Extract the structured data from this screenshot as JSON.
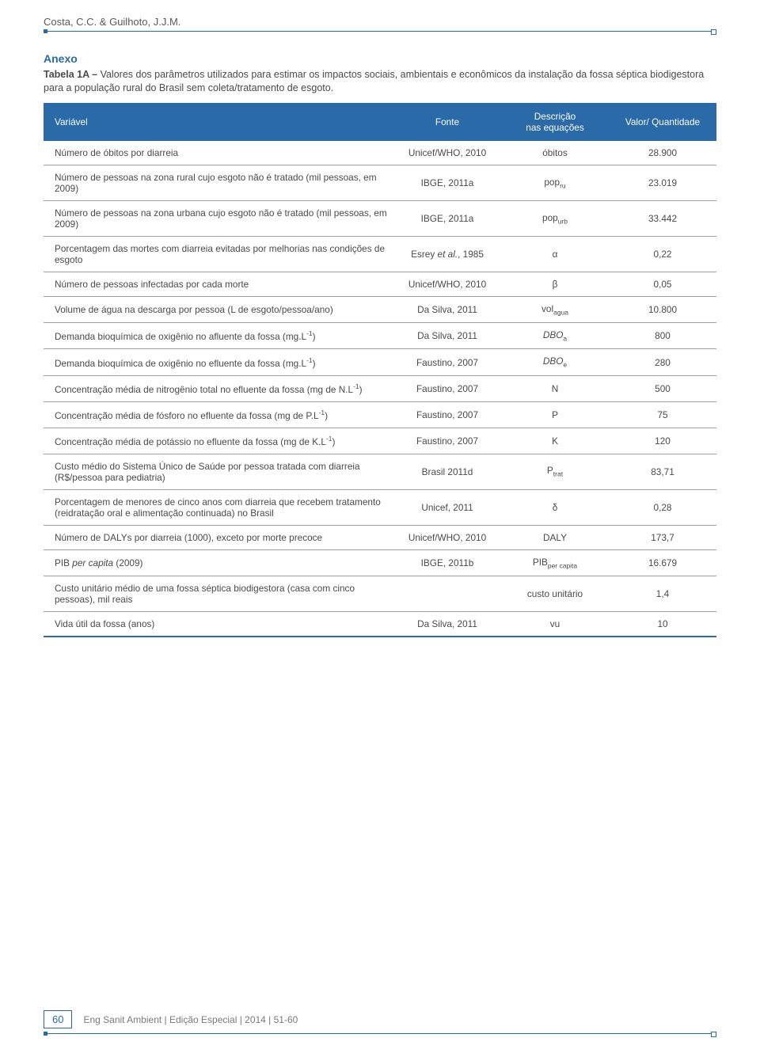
{
  "header": {
    "authors": "Costa, C.C. & Guilhoto, J.J.M."
  },
  "anexo": {
    "title": "Anexo",
    "caption_bold": "Tabela 1A – ",
    "caption_rest": "Valores dos parâmetros utilizados para estimar os impactos sociais, ambientais e econômicos da instalação da fossa séptica biodigestora para a população rural do Brasil sem coleta/tratamento de esgoto."
  },
  "table": {
    "headers": {
      "variavel": "Variável",
      "fonte": "Fonte",
      "descricao_l1": "Descrição",
      "descricao_l2": "nas equações",
      "valor": "Valor/ Quantidade"
    },
    "rows": [
      {
        "v": "Número de óbitos por diarreia",
        "f": "Unicef/WHO, 2010",
        "d": "óbitos",
        "q": "28.900"
      },
      {
        "v": "Número de pessoas na zona rural cujo esgoto não é tratado (mil pessoas, em 2009)",
        "f": "IBGE, 2011a",
        "d_html": "pop<span class='sub'>ru</span>",
        "q": "23.019"
      },
      {
        "v": "Número de pessoas na zona urbana cujo esgoto não é tratado (mil pessoas, em 2009)",
        "f": "IBGE, 2011a",
        "d_html": "pop<span class='sub'>urb</span>",
        "q": "33.442"
      },
      {
        "v": "Porcentagem das mortes com diarreia evitadas por melhorias nas condições de esgoto",
        "f_html": "Esrey <span class='ital'>et al.</span>, 1985",
        "d": "α",
        "q": "0,22"
      },
      {
        "v": "Número de pessoas infectadas por cada morte",
        "f": "Unicef/WHO, 2010",
        "d": "β",
        "q": "0,05"
      },
      {
        "v": "Volume de água na descarga por pessoa (L de esgoto/pessoa/ano)",
        "f": "Da Silva, 2011",
        "d_html": "vol<span class='sub'>agua</span>",
        "q": "10.800"
      },
      {
        "v_html": "Demanda bioquímica de oxigênio no afluente da fossa (mg.L<span class='sup'>-1</span>)",
        "f": "Da Silva, 2011",
        "d_html": "<span class='ital'>DBO</span><span class='sub'>a</span>",
        "q": "800"
      },
      {
        "v_html": "Demanda bioquímica de oxigênio no efluente da fossa (mg.L<span class='sup'>-1</span>)",
        "f": "Faustino, 2007",
        "d_html": "<span class='ital'>DBO</span><span class='sub'>e</span>",
        "q": "280"
      },
      {
        "v_html": "Concentração média de nitrogênio total no efluente da fossa (mg de N.L<span class='sup'>-1</span>)",
        "f": "Faustino, 2007",
        "d": "N",
        "q": "500"
      },
      {
        "v_html": "Concentração média de fósforo no efluente da fossa (mg de P.L<span class='sup'>-1</span>)",
        "f": "Faustino, 2007",
        "d": "P",
        "q": "75"
      },
      {
        "v_html": "Concentração média de potássio no efluente da fossa (mg de K.L<span class='sup'>-1</span>)",
        "f": "Faustino, 2007",
        "d": "K",
        "q": "120"
      },
      {
        "v": "Custo médio do Sistema Único de Saúde por pessoa tratada com diarreia (R$/pessoa para pediatria)",
        "f": "Brasil  2011d",
        "d_html": "P<span class='sub'>trat</span>",
        "q": "83,71"
      },
      {
        "v": "Porcentagem de menores de cinco anos com diarreia que recebem tratamento (reidratação oral e alimentação continuada) no Brasil",
        "f": "Unicef, 2011",
        "d": "δ",
        "q": "0,28"
      },
      {
        "v": "Número de DALYs por diarreia (1000), exceto por morte precoce",
        "f": "Unicef/WHO, 2010",
        "d": "DALY",
        "q": "173,7"
      },
      {
        "v_html": "PIB <span class='ital'>per capita</span> (2009)",
        "f": "IBGE, 2011b",
        "d_html": "PIB<span class='sub'>per capita</span>",
        "q": "16.679"
      },
      {
        "v": "Custo unitário médio de uma fossa séptica biodigestora (casa com cinco pessoas), mil reais",
        "f": "",
        "d": "custo unitário",
        "q": "1,4"
      },
      {
        "v": "Vida útil da fossa (anos)",
        "f": "Da Silva, 2011",
        "d": "vu",
        "q": "10"
      }
    ],
    "colors": {
      "header_bg": "#2a6aa8",
      "header_text": "#ffffff",
      "row_border": "#9ca2a6",
      "text": "#4a4a4a",
      "rule": "#2a6aa8"
    },
    "col_widths_pct": [
      52,
      16,
      16,
      16
    ],
    "font_size_pt": 9
  },
  "footer": {
    "page": "60",
    "text": "Eng Sanit Ambient | Edição Especial | 2014 | 51-60"
  }
}
